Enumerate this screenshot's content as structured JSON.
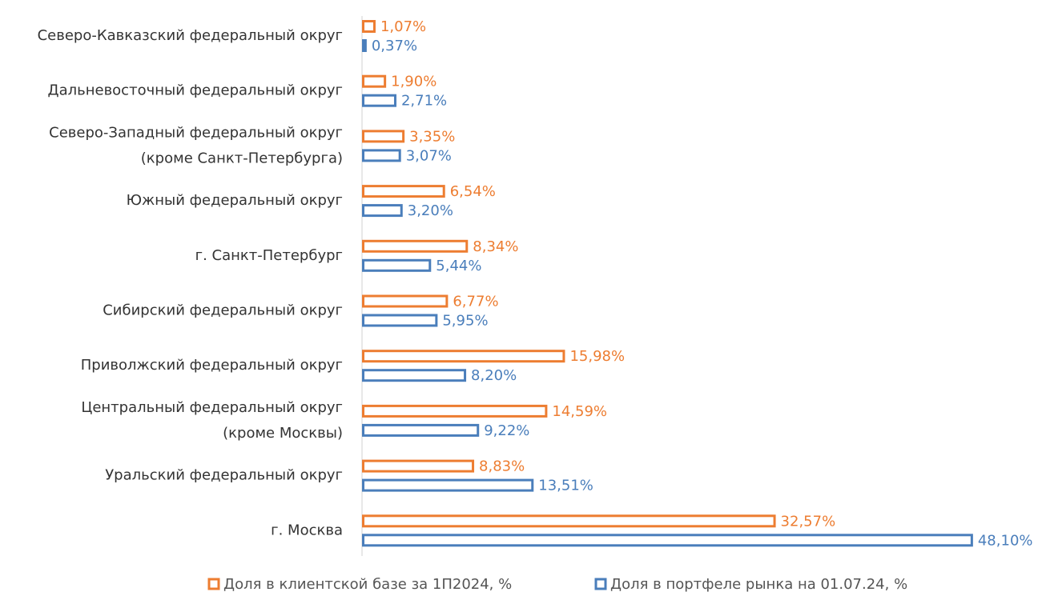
{
  "chart_data": {
    "type": "bar",
    "orientation": "horizontal",
    "categories": [
      [
        "Северо-Кавказский федеральный округ"
      ],
      [
        "Дальневосточный федеральный округ"
      ],
      [
        "Северо-Западный федеральный округ",
        "(кроме Санкт-Петербурга)"
      ],
      [
        "Южный федеральный округ"
      ],
      [
        "г. Санкт-Петербург"
      ],
      [
        "Сибирский федеральный округ"
      ],
      [
        "Приволжский федеральный округ"
      ],
      [
        "Центральный федеральный округ",
        "(кроме Москвы)"
      ],
      [
        "Уральский федеральный округ"
      ],
      [
        "г. Москва"
      ]
    ],
    "series": [
      {
        "name": "Доля в клиентской базе за 1П2024, %",
        "color": "#ed7d31",
        "values": [
          1.07,
          1.9,
          3.35,
          6.54,
          8.34,
          6.77,
          15.98,
          14.59,
          8.83,
          32.57
        ],
        "value_labels": [
          "1,07%",
          "1,90%",
          "3,35%",
          "6,54%",
          "8,34%",
          "6,77%",
          "15,98%",
          "14,59%",
          "8,83%",
          "32,57%"
        ]
      },
      {
        "name": "Доля в портфеле рынка на 01.07.24, %",
        "color": "#4a7ebb",
        "values": [
          0.37,
          2.71,
          3.07,
          3.2,
          5.44,
          5.95,
          8.2,
          9.22,
          13.51,
          48.1
        ],
        "value_labels": [
          "0,37%",
          "2,71%",
          "3,07%",
          "3,20%",
          "5,44%",
          "5,95%",
          "8,20%",
          "9,22%",
          "13,51%",
          "48,10%"
        ]
      }
    ],
    "xlim": [
      0,
      50
    ],
    "legend": "bottom"
  }
}
